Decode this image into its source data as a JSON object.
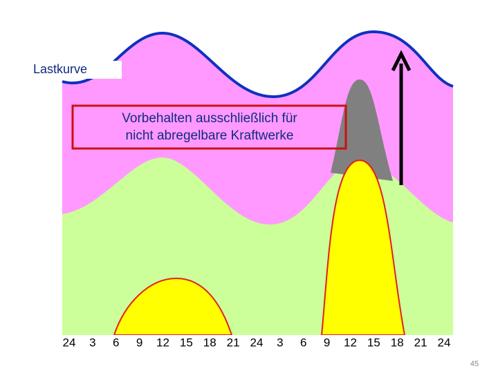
{
  "label": "Lastkurve",
  "note_lines": [
    "Vorbehalten ausschließlich für",
    "nicht abregelbare Kraftwerke"
  ],
  "x_axis_labels": [
    24,
    3,
    6,
    9,
    12,
    15,
    18,
    21,
    24,
    3,
    6,
    9,
    12,
    15,
    18,
    21,
    24
  ],
  "page_number": 45
}
